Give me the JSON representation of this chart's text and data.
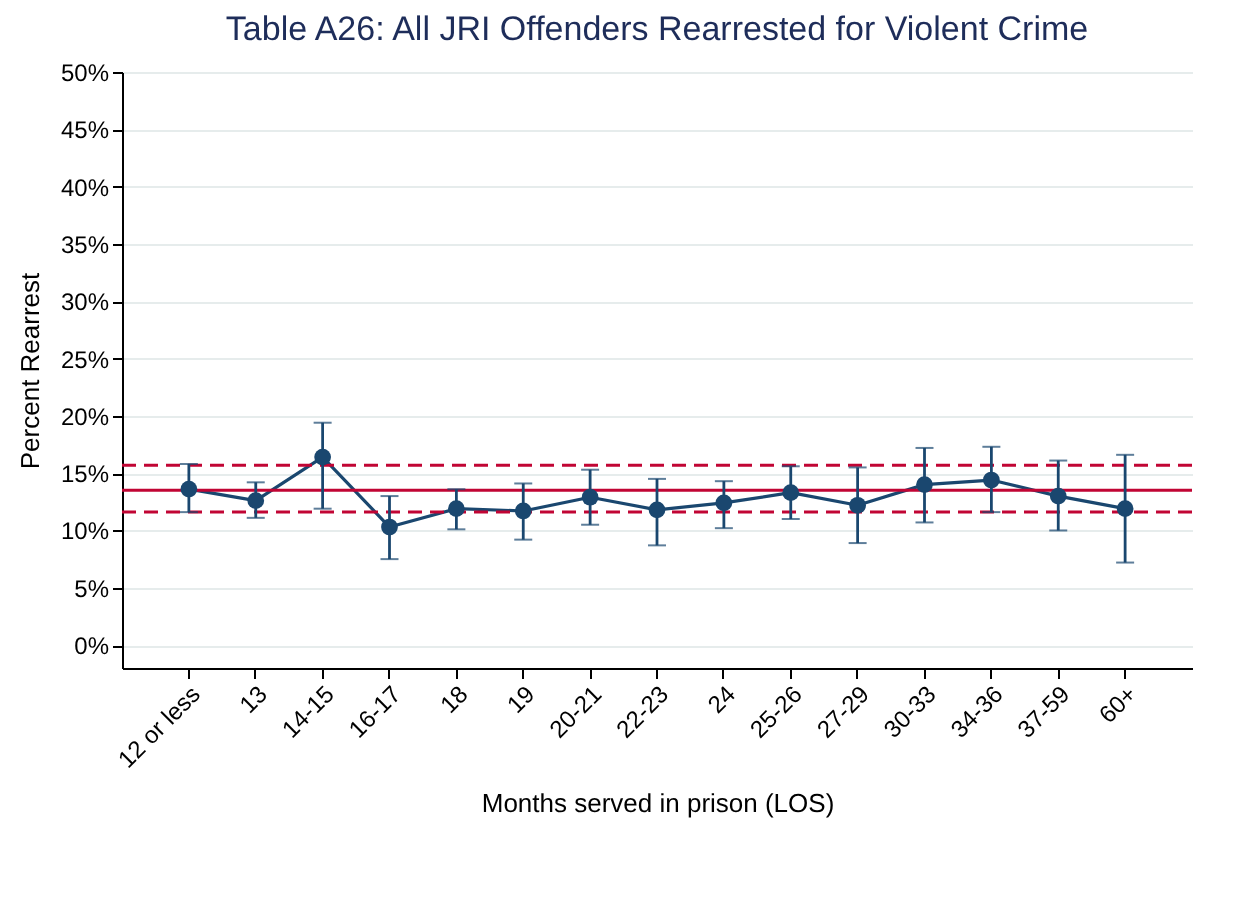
{
  "chart_data": {
    "type": "line",
    "title": "Table A26: All JRI Offenders Rearrested for Violent Crime",
    "xlabel": "Months served in prison (LOS)",
    "ylabel": "Percent Rearrest",
    "categories": [
      "12 or less",
      "13",
      "14-15",
      "16-17",
      "18",
      "19",
      "20-21",
      "22-23",
      "24",
      "25-26",
      "27-29",
      "30-33",
      "34-36",
      "37-59",
      "60+"
    ],
    "series": [
      {
        "color": "#1a476f",
        "values": [
          13.6,
          12.6,
          16.4,
          10.3,
          11.9,
          11.7,
          12.9,
          11.8,
          12.4,
          13.3,
          12.2,
          14.0,
          14.4,
          13.0,
          11.9
        ],
        "errors": [
          [
            11.6,
            15.8
          ],
          [
            11.1,
            14.2
          ],
          [
            11.9,
            19.4
          ],
          [
            7.5,
            13.0
          ],
          [
            10.1,
            13.6
          ],
          [
            9.2,
            14.1
          ],
          [
            10.5,
            15.3
          ],
          [
            8.7,
            14.5
          ],
          [
            10.2,
            14.3
          ],
          [
            11.0,
            15.6
          ],
          [
            8.9,
            15.5
          ],
          [
            10.7,
            17.2
          ],
          [
            11.6,
            17.3
          ],
          [
            10.0,
            16.1
          ],
          [
            7.2,
            16.6
          ]
        ]
      }
    ],
    "ylim": [
      -2,
      50
    ],
    "yticks": [
      {
        "value": 0,
        "label": "0%"
      },
      {
        "value": 5,
        "label": "5%"
      },
      {
        "value": 10,
        "label": "10%"
      },
      {
        "value": 15,
        "label": "15%"
      },
      {
        "value": 20,
        "label": "20%"
      },
      {
        "value": 25,
        "label": "25%"
      },
      {
        "value": 30,
        "label": "30%"
      },
      {
        "value": 35,
        "label": "35%"
      },
      {
        "value": 40,
        "label": "40%"
      },
      {
        "value": 45,
        "label": "45%"
      },
      {
        "value": 50,
        "label": "50%"
      }
    ],
    "ref_lines": [
      {
        "axis": "y",
        "value": 13.5,
        "color": "#c10534",
        "line_style": "solid"
      },
      {
        "axis": "y",
        "value": 15.7,
        "color": "#c10534",
        "line_style": "dashed"
      },
      {
        "axis": "y",
        "value": 11.6,
        "color": "#c10534",
        "line_style": "dashed"
      }
    ],
    "grid": "y",
    "marker": "circle",
    "line_style": "solid"
  }
}
